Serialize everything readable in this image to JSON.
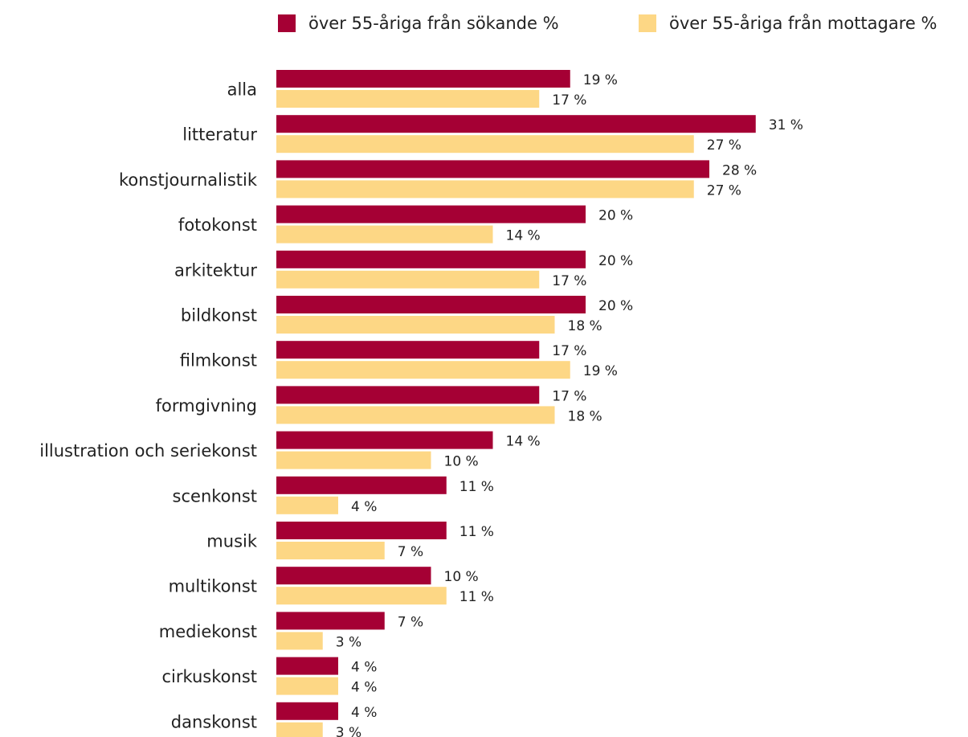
{
  "chart_data": {
    "type": "bar",
    "orientation": "horizontal",
    "title": "",
    "xlabel": "",
    "ylabel": "",
    "categories": [
      "alla",
      "litteratur",
      "konstjournalistik",
      "fotokonst",
      "arkitektur",
      "bildkonst",
      "filmkonst",
      "formgivning",
      "illustration och seriekonst",
      "scenkonst",
      "musik",
      "multikonst",
      "mediekonst",
      "cirkuskonst",
      "danskonst"
    ],
    "series": [
      {
        "name": "över 55-åriga från sökande %",
        "color": "#A50034",
        "values": [
          19,
          31,
          28,
          20,
          20,
          20,
          17,
          17,
          14,
          11,
          11,
          10,
          7,
          4,
          4
        ]
      },
      {
        "name": "över 55-åriga från mottagare %",
        "color": "#FDD785",
        "values": [
          17,
          27,
          27,
          14,
          17,
          18,
          19,
          18,
          10,
          4,
          7,
          11,
          3,
          4,
          3
        ]
      }
    ],
    "value_suffix": " %",
    "xlim": [
      0,
      31
    ],
    "grid": false,
    "legend_position": "top"
  }
}
